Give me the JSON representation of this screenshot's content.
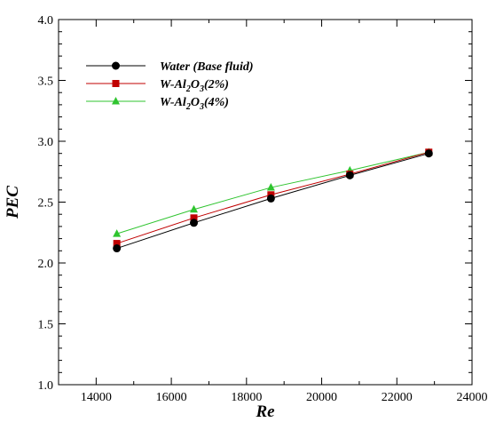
{
  "chart_data": {
    "type": "line",
    "xlabel": "Re",
    "ylabel": "PEC",
    "xlim": [
      13000,
      24000
    ],
    "ylim": [
      1.0,
      4.0
    ],
    "xticks": [
      14000,
      16000,
      18000,
      20000,
      22000,
      24000
    ],
    "yticks": [
      1.0,
      1.5,
      2.0,
      2.5,
      3.0,
      3.5,
      4.0
    ],
    "xtick_labels": [
      "14000",
      "16000",
      "18000",
      "20000",
      "22000",
      "24000"
    ],
    "ytick_labels": [
      "1.0",
      "1.5",
      "2.0",
      "2.5",
      "3.0",
      "3.5",
      "4.0"
    ],
    "grid": false,
    "legend_position": "top-left",
    "x": [
      14550,
      16600,
      18650,
      20750,
      22850
    ],
    "series": [
      {
        "name": "Water (Base fluid)",
        "legend_parts": [
          {
            "text": "Water (Base fluid)",
            "sub": false
          }
        ],
        "color": "#000000",
        "marker": "circle",
        "values": [
          2.12,
          2.33,
          2.53,
          2.72,
          2.9
        ]
      },
      {
        "name": "W-Al2O3(2%)",
        "legend_parts": [
          {
            "text": "W-Al",
            "sub": false
          },
          {
            "text": "2",
            "sub": true
          },
          {
            "text": "O",
            "sub": false
          },
          {
            "text": "3",
            "sub": true
          },
          {
            "text": "(2%)",
            "sub": false
          }
        ],
        "color": "#c00000",
        "marker": "square",
        "values": [
          2.16,
          2.37,
          2.56,
          2.73,
          2.91
        ]
      },
      {
        "name": "W-Al2O3(4%)",
        "legend_parts": [
          {
            "text": "W-Al",
            "sub": false
          },
          {
            "text": "2",
            "sub": true
          },
          {
            "text": "O",
            "sub": false
          },
          {
            "text": "3",
            "sub": true
          },
          {
            "text": "(4%)",
            "sub": false
          }
        ],
        "color": "#2fc42f",
        "marker": "triangle",
        "values": [
          2.24,
          2.44,
          2.62,
          2.76,
          2.91
        ]
      }
    ]
  }
}
